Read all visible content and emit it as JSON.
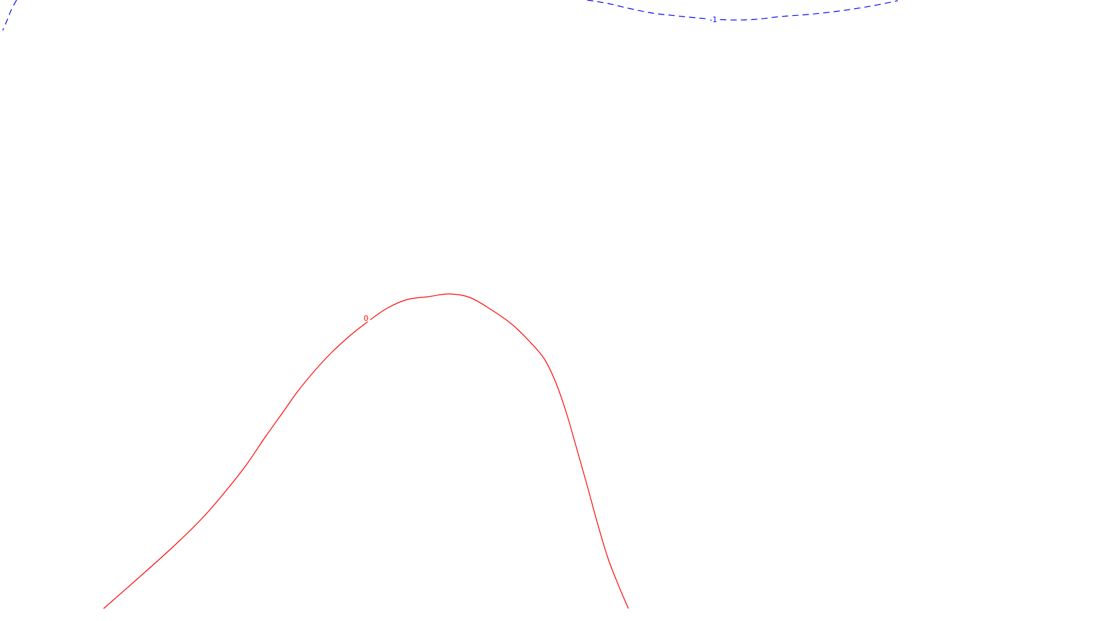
{
  "chart_data": {
    "type": "contour",
    "title": "",
    "xlabel": "",
    "ylabel": "",
    "contours": [
      {
        "name": "contour-level-0",
        "level_label": "0",
        "color": "#ff0000",
        "style": "solid",
        "points": [
          [
            150,
            882
          ],
          [
            200,
            838
          ],
          [
            250,
            793
          ],
          [
            290,
            754
          ],
          [
            320,
            720
          ],
          [
            355,
            676
          ],
          [
            385,
            632
          ],
          [
            410,
            597
          ],
          [
            432,
            566
          ],
          [
            455,
            538
          ],
          [
            480,
            511
          ],
          [
            505,
            488
          ],
          [
            530,
            468
          ],
          [
            560,
            447
          ],
          [
            590,
            434
          ],
          [
            620,
            430
          ],
          [
            650,
            426
          ],
          [
            680,
            431
          ],
          [
            710,
            448
          ],
          [
            740,
            469
          ],
          [
            765,
            493
          ],
          [
            788,
            520
          ],
          [
            805,
            555
          ],
          [
            820,
            598
          ],
          [
            835,
            650
          ],
          [
            850,
            703
          ],
          [
            865,
            758
          ],
          [
            880,
            808
          ],
          [
            897,
            852
          ],
          [
            910,
            882
          ]
        ],
        "label_at": [
          530,
          461
        ]
      },
      {
        "name": "contour-level-neg1",
        "level_label": "-1",
        "color": "#0000ff",
        "style": "dashed",
        "points": [
          [
            850,
            0
          ],
          [
            880,
            5
          ],
          [
            910,
            12
          ],
          [
            945,
            19
          ],
          [
            980,
            23
          ],
          [
            1010,
            26
          ],
          [
            1035,
            28
          ],
          [
            1065,
            29
          ],
          [
            1095,
            28
          ],
          [
            1130,
            24
          ],
          [
            1170,
            21
          ],
          [
            1215,
            16
          ],
          [
            1260,
            9
          ],
          [
            1300,
            1
          ]
        ],
        "label_at": [
          1033,
          28
        ]
      },
      {
        "name": "contour-level-neg1-left",
        "level_label": "",
        "color": "#0000ff",
        "style": "dashed",
        "points": [
          [
            24,
            0
          ],
          [
            16,
            15
          ],
          [
            10,
            30
          ],
          [
            4,
            44
          ]
        ],
        "label_at": null
      }
    ]
  }
}
